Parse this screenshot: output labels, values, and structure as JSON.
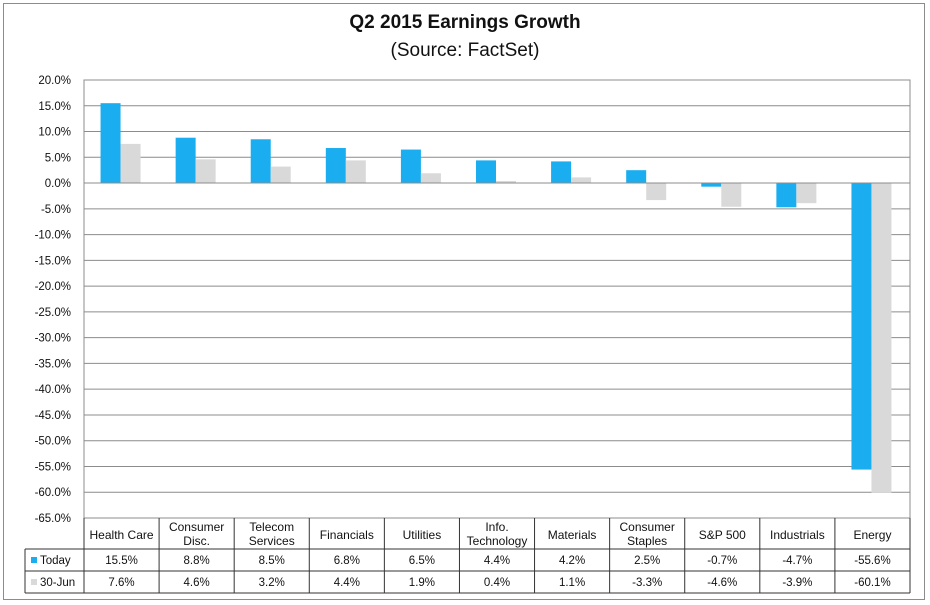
{
  "chart_data": {
    "type": "bar",
    "title": "Q2 2015 Earnings Growth",
    "subtitle": "(Source: FactSet)",
    "xlabel": "",
    "ylabel": "",
    "ylim": [
      -65,
      20
    ],
    "ytick_step": 5,
    "ytick_labels": [
      "20.0%",
      "15.0%",
      "10.0%",
      "5.0%",
      "0.0%",
      "-5.0%",
      "-10.0%",
      "-15.0%",
      "-20.0%",
      "-25.0%",
      "-30.0%",
      "-35.0%",
      "-40.0%",
      "-45.0%",
      "-50.0%",
      "-55.0%",
      "-60.0%",
      "-65.0%"
    ],
    "grid": true,
    "legend_position": "data-table-left",
    "categories": [
      [
        "Health Care"
      ],
      [
        "Consumer",
        "Disc."
      ],
      [
        "Telecom",
        "Services"
      ],
      [
        "Financials"
      ],
      [
        "Utilities"
      ],
      [
        "Info.",
        "Technology"
      ],
      [
        "Materials"
      ],
      [
        "Consumer",
        "Staples"
      ],
      [
        "S&P 500"
      ],
      [
        "Industrials"
      ],
      [
        "Energy"
      ]
    ],
    "series": [
      {
        "name": "Today",
        "color": "#1aaef0",
        "values": [
          15.5,
          8.8,
          8.5,
          6.8,
          6.5,
          4.4,
          4.2,
          2.5,
          -0.7,
          -4.7,
          -55.6
        ],
        "labels": [
          "15.5%",
          "8.8%",
          "8.5%",
          "6.8%",
          "6.5%",
          "4.4%",
          "4.2%",
          "2.5%",
          "-0.7%",
          "-4.7%",
          "-55.6%"
        ]
      },
      {
        "name": "30-Jun",
        "color": "#d9d9d9",
        "values": [
          7.6,
          4.6,
          3.2,
          4.4,
          1.9,
          0.4,
          1.1,
          -3.3,
          -4.6,
          -3.9,
          -60.1
        ],
        "labels": [
          "7.6%",
          "4.6%",
          "3.2%",
          "4.4%",
          "1.9%",
          "0.4%",
          "1.1%",
          "-3.3%",
          "-4.6%",
          "-3.9%",
          "-60.1%"
        ]
      }
    ]
  }
}
